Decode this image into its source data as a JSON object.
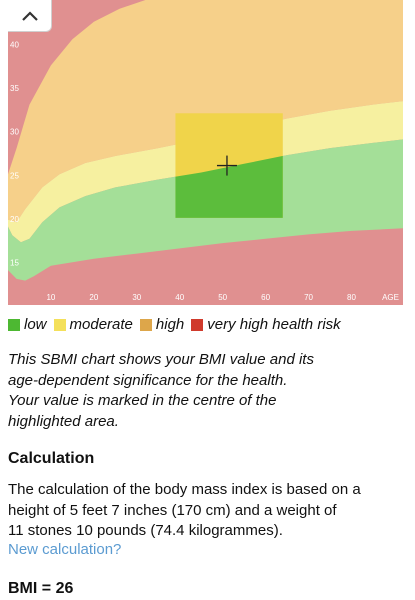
{
  "chart_data": {
    "type": "area",
    "x_ticks": [
      10,
      20,
      30,
      40,
      50,
      60,
      70,
      80
    ],
    "x_axis_label": "AGE",
    "y_ticks": [
      15,
      20,
      25,
      30,
      35,
      40
    ],
    "xlim": [
      0,
      92
    ],
    "ylim": [
      10,
      45
    ],
    "zones": [
      {
        "name": "very high health risk",
        "color": "#e09090"
      },
      {
        "name": "high",
        "color": "#f6d08a"
      },
      {
        "name": "moderate",
        "color": "#f6f0a0"
      },
      {
        "name": "low",
        "color": "#a4df98"
      }
    ],
    "highlight": {
      "x_range": [
        39,
        64
      ],
      "y_range": [
        20,
        32
      ],
      "marker_x": 51,
      "marker_y": 26
    },
    "grid": false
  },
  "ui": {
    "collapse_icon": "chevron-up-icon"
  },
  "legend": [
    {
      "label": "low",
      "color": "#4db832"
    },
    {
      "label": "moderate",
      "color": "#f4e05a"
    },
    {
      "label": "high",
      "color": "#dda64a"
    },
    {
      "label": "very high health risk",
      "color": "#d03a2c"
    }
  ],
  "description": [
    "This SBMI chart shows your BMI value and its",
    "age-dependent significance for the health.",
    "Your value is marked in the centre of the",
    "highlighted area."
  ],
  "calculation": {
    "title": "Calculation",
    "lines": [
      "The calculation of the body mass index is based on a",
      "height of 5 feet 7 inches (170 cm) and a weight of",
      "11 stones 10 pounds (74.4 kilogrammes)."
    ],
    "link_label": "New calculation?"
  },
  "result": "BMI = 26"
}
